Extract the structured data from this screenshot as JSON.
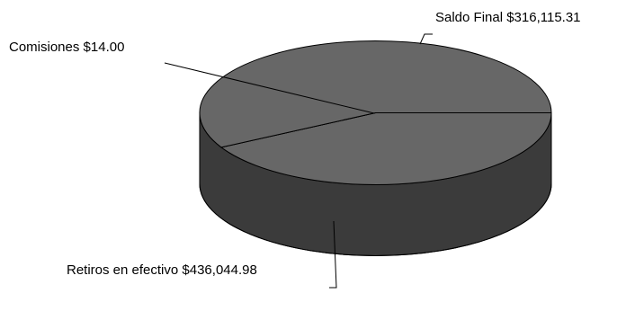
{
  "chart_data": {
    "type": "pie",
    "style": "3d",
    "slices": [
      {
        "label": "Saldo Final",
        "value": 316115.31,
        "display": "$316,115.31"
      },
      {
        "label": "Comisiones",
        "value": 14.0,
        "display": "$14.00"
      },
      {
        "label": "Retiros en efectivo",
        "value": 436044.98,
        "display": "$436,044.98"
      }
    ],
    "colors": {
      "top": "#676767",
      "side": "#3b3b3b",
      "outline": "#000000",
      "background": "#ffffff"
    },
    "legend": "none"
  }
}
